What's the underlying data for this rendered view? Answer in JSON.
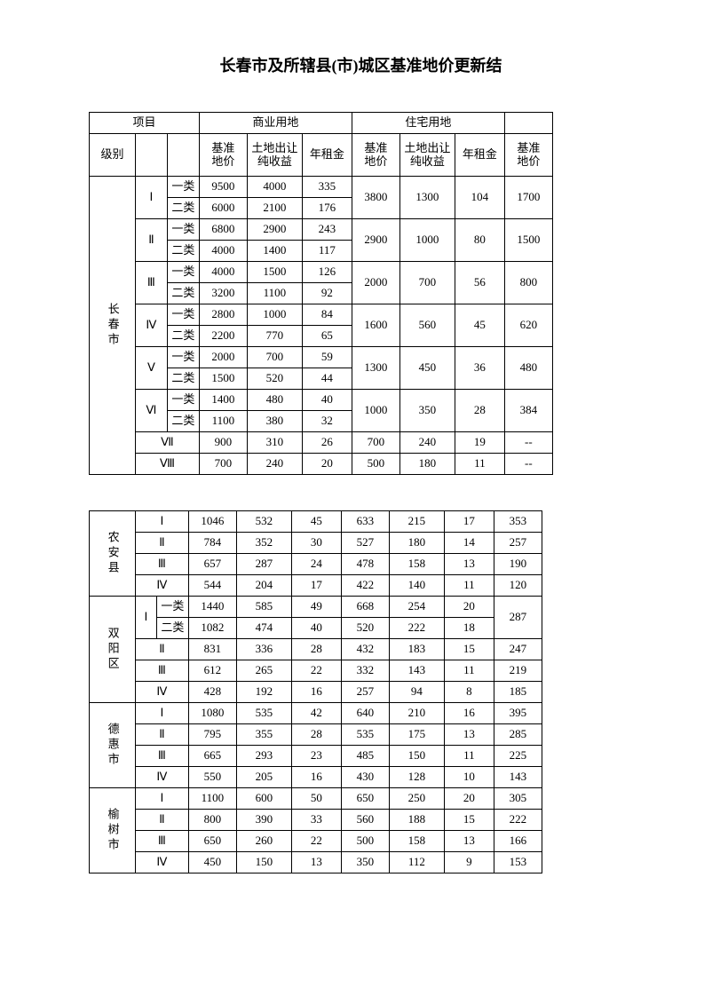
{
  "title": "长春市及所辖县(市)城区基准地价更新结",
  "headers": {
    "project": "项目",
    "level": "级别",
    "commercial": "商业用地",
    "residential": "住宅用地",
    "base_price": "基准\n地价",
    "transfer_income": "土地出让\n纯收益",
    "annual_rent": "年租金"
  },
  "roman": [
    "Ⅰ",
    "Ⅱ",
    "Ⅲ",
    "Ⅳ",
    "Ⅴ",
    "Ⅵ",
    "Ⅶ",
    "Ⅷ"
  ],
  "subclass": {
    "a": "一类",
    "b": "二类"
  },
  "cities": {
    "changchun": "长春市",
    "nongan": "农安县",
    "shuangyang": "双阳区",
    "dehui": "德惠市",
    "yushu": "榆树市"
  },
  "changchun_rows": [
    {
      "roman": "Ⅰ",
      "a": [
        "9500",
        "4000",
        "335"
      ],
      "b": [
        "6000",
        "2100",
        "176"
      ],
      "res": [
        "3800",
        "1300",
        "104"
      ],
      "extra": "1700"
    },
    {
      "roman": "Ⅱ",
      "a": [
        "6800",
        "2900",
        "243"
      ],
      "b": [
        "4000",
        "1400",
        "117"
      ],
      "res": [
        "2900",
        "1000",
        "80"
      ],
      "extra": "1500"
    },
    {
      "roman": "Ⅲ",
      "a": [
        "4000",
        "1500",
        "126"
      ],
      "b": [
        "3200",
        "1100",
        "92"
      ],
      "res": [
        "2000",
        "700",
        "56"
      ],
      "extra": "800"
    },
    {
      "roman": "Ⅳ",
      "a": [
        "2800",
        "1000",
        "84"
      ],
      "b": [
        "2200",
        "770",
        "65"
      ],
      "res": [
        "1600",
        "560",
        "45"
      ],
      "extra": "620"
    },
    {
      "roman": "Ⅴ",
      "a": [
        "2000",
        "700",
        "59"
      ],
      "b": [
        "1500",
        "520",
        "44"
      ],
      "res": [
        "1300",
        "450",
        "36"
      ],
      "extra": "480"
    },
    {
      "roman": "Ⅵ",
      "a": [
        "1400",
        "480",
        "40"
      ],
      "b": [
        "1100",
        "380",
        "32"
      ],
      "res": [
        "1000",
        "350",
        "28"
      ],
      "extra": "384"
    }
  ],
  "changchun_simple": [
    {
      "roman": "Ⅶ",
      "com": [
        "900",
        "310",
        "26"
      ],
      "res": [
        "700",
        "240",
        "19"
      ],
      "extra": "--"
    },
    {
      "roman": "Ⅷ",
      "com": [
        "700",
        "240",
        "20"
      ],
      "res": [
        "500",
        "180",
        "11"
      ],
      "extra": "--"
    }
  ],
  "nongan": [
    {
      "roman": "Ⅰ",
      "com": [
        "1046",
        "532",
        "45"
      ],
      "res": [
        "633",
        "215",
        "17"
      ],
      "extra": "353"
    },
    {
      "roman": "Ⅱ",
      "com": [
        "784",
        "352",
        "30"
      ],
      "res": [
        "527",
        "180",
        "14"
      ],
      "extra": "257"
    },
    {
      "roman": "Ⅲ",
      "com": [
        "657",
        "287",
        "24"
      ],
      "res": [
        "478",
        "158",
        "13"
      ],
      "extra": "190"
    },
    {
      "roman": "Ⅳ",
      "com": [
        "544",
        "204",
        "17"
      ],
      "res": [
        "422",
        "140",
        "11"
      ],
      "extra": "120"
    }
  ],
  "shuangyang_I": {
    "roman": "Ⅰ",
    "a": [
      "1440",
      "585",
      "49"
    ],
    "b": [
      "1082",
      "474",
      "40"
    ],
    "res_a": [
      "668",
      "254",
      "20"
    ],
    "res_b": [
      "520",
      "222",
      "18"
    ],
    "extra": "287"
  },
  "shuangyang_rest": [
    {
      "roman": "Ⅱ",
      "com": [
        "831",
        "336",
        "28"
      ],
      "res": [
        "432",
        "183",
        "15"
      ],
      "extra": "247"
    },
    {
      "roman": "Ⅲ",
      "com": [
        "612",
        "265",
        "22"
      ],
      "res": [
        "332",
        "143",
        "11"
      ],
      "extra": "219"
    },
    {
      "roman": "Ⅳ",
      "com": [
        "428",
        "192",
        "16"
      ],
      "res": [
        "257",
        "94",
        "8"
      ],
      "extra": "185"
    }
  ],
  "dehui": [
    {
      "roman": "Ⅰ",
      "com": [
        "1080",
        "535",
        "42"
      ],
      "res": [
        "640",
        "210",
        "16"
      ],
      "extra": "395"
    },
    {
      "roman": "Ⅱ",
      "com": [
        "795",
        "355",
        "28"
      ],
      "res": [
        "535",
        "175",
        "13"
      ],
      "extra": "285"
    },
    {
      "roman": "Ⅲ",
      "com": [
        "665",
        "293",
        "23"
      ],
      "res": [
        "485",
        "150",
        "11"
      ],
      "extra": "225"
    },
    {
      "roman": "Ⅳ",
      "com": [
        "550",
        "205",
        "16"
      ],
      "res": [
        "430",
        "128",
        "10"
      ],
      "extra": "143"
    }
  ],
  "yushu": [
    {
      "roman": "Ⅰ",
      "com": [
        "1100",
        "600",
        "50"
      ],
      "res": [
        "650",
        "250",
        "20"
      ],
      "extra": "305"
    },
    {
      "roman": "Ⅱ",
      "com": [
        "800",
        "390",
        "33"
      ],
      "res": [
        "560",
        "188",
        "15"
      ],
      "extra": "222"
    },
    {
      "roman": "Ⅲ",
      "com": [
        "650",
        "260",
        "22"
      ],
      "res": [
        "500",
        "158",
        "13"
      ],
      "extra": "166"
    },
    {
      "roman": "Ⅳ",
      "com": [
        "450",
        "150",
        "13"
      ],
      "res": [
        "350",
        "112",
        "9"
      ],
      "extra": "153"
    }
  ]
}
